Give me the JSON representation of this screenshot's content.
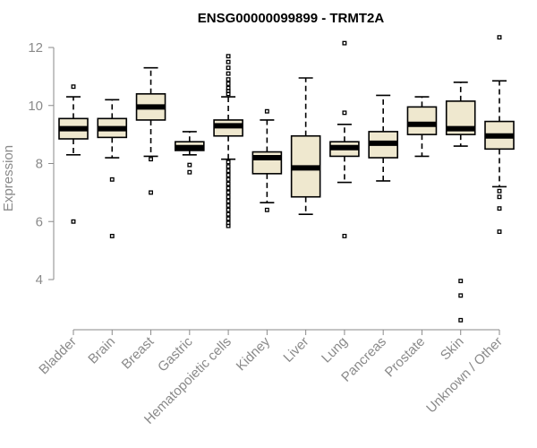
{
  "chart_data": {
    "type": "boxplot",
    "title": "ENSG00000099899 - TRMT2A",
    "xlabel": "",
    "ylabel": "Expression",
    "ylim": [
      2.2,
      12.6
    ],
    "yticks": [
      4,
      6,
      8,
      10,
      12
    ],
    "grid": false,
    "colors": {
      "box_fill": "#efe8cf",
      "box_stroke": "#000000",
      "axis": "#8a8a8a",
      "title": "#000000"
    },
    "categories": [
      "Bladder",
      "Brain",
      "Breast",
      "Gastric",
      "Hematopoietic cells",
      "Kidney",
      "Liver",
      "Lung",
      "Pancreas",
      "Prostate",
      "Skin",
      "Unknown / Other"
    ],
    "boxes": [
      {
        "category": "Bladder",
        "whisker_low": 8.3,
        "q1": 8.85,
        "median": 9.2,
        "q3": 9.55,
        "whisker_high": 10.3,
        "outliers": [
          10.65,
          6.0
        ]
      },
      {
        "category": "Brain",
        "whisker_low": 8.2,
        "q1": 8.9,
        "median": 9.2,
        "q3": 9.55,
        "whisker_high": 10.2,
        "outliers": [
          7.45,
          5.5
        ]
      },
      {
        "category": "Breast",
        "whisker_low": 8.25,
        "q1": 9.5,
        "median": 9.95,
        "q3": 10.4,
        "whisker_high": 11.3,
        "outliers": [
          8.15,
          7.0
        ]
      },
      {
        "category": "Gastric",
        "whisker_low": 8.3,
        "q1": 8.45,
        "median": 8.55,
        "q3": 8.75,
        "whisker_high": 9.1,
        "outliers": [
          7.95,
          7.7
        ]
      },
      {
        "category": "Hematopoietic cells",
        "whisker_low": 8.15,
        "q1": 8.95,
        "median": 9.3,
        "q3": 9.5,
        "whisker_high": 10.3,
        "outliers": [
          11.7,
          11.5,
          11.3,
          11.1,
          10.9,
          10.75,
          10.6,
          10.5,
          10.4,
          8.05,
          7.9,
          7.75,
          7.6,
          7.45,
          7.3,
          7.15,
          7.0,
          6.85,
          6.7,
          6.55,
          6.4,
          6.25,
          6.1,
          5.95,
          5.85
        ]
      },
      {
        "category": "Kidney",
        "whisker_low": 6.65,
        "q1": 7.65,
        "median": 8.2,
        "q3": 8.4,
        "whisker_high": 9.5,
        "outliers": [
          9.8,
          6.4
        ]
      },
      {
        "category": "Liver",
        "whisker_low": 6.25,
        "q1": 6.85,
        "median": 7.85,
        "q3": 8.95,
        "whisker_high": 10.95,
        "outliers": []
      },
      {
        "category": "Lung",
        "whisker_low": 7.35,
        "q1": 8.25,
        "median": 8.55,
        "q3": 8.75,
        "whisker_high": 9.35,
        "outliers": [
          12.15,
          9.75,
          5.5
        ]
      },
      {
        "category": "Pancreas",
        "whisker_low": 7.4,
        "q1": 8.2,
        "median": 8.7,
        "q3": 9.1,
        "whisker_high": 10.35,
        "outliers": []
      },
      {
        "category": "Prostate",
        "whisker_low": 8.25,
        "q1": 9.0,
        "median": 9.35,
        "q3": 9.95,
        "whisker_high": 10.3,
        "outliers": []
      },
      {
        "category": "Skin",
        "whisker_low": 8.6,
        "q1": 9.0,
        "median": 9.2,
        "q3": 10.15,
        "whisker_high": 10.8,
        "outliers": [
          3.95,
          3.45,
          2.6
        ]
      },
      {
        "category": "Unknown / Other",
        "whisker_low": 7.2,
        "q1": 8.5,
        "median": 8.95,
        "q3": 9.45,
        "whisker_high": 10.85,
        "outliers": [
          12.35,
          7.05,
          6.85,
          6.45,
          5.65
        ]
      }
    ]
  }
}
